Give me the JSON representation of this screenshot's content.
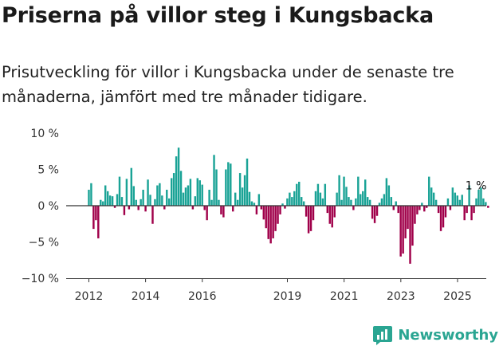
{
  "header": {
    "title": "Priserna på villor steg i Kungsbacka",
    "subtitle": "Prisutveckling för villor i Kungsbacka under de senaste tre månaderna, jämfört med tre månader tidigare."
  },
  "brand": {
    "name": "Newsworthy",
    "color": "#2aa592"
  },
  "colors": {
    "positive": "#1aa396",
    "negative": "#a0004a",
    "zero_line": "#333333",
    "axis": "#333333"
  },
  "chart_data": {
    "type": "bar",
    "x_start": 2012.0,
    "x_step": 0.0833,
    "xlim": [
      2011.2,
      2025.9
    ],
    "ylim": [
      -10,
      10
    ],
    "yticks": [
      10,
      5,
      0,
      -5,
      -10
    ],
    "ytick_labels": [
      "10 %",
      "5 %",
      "0 %",
      "−5 %",
      "−10 %"
    ],
    "xticks": [
      2012,
      2014,
      2016,
      2019,
      2021,
      2023,
      2025
    ],
    "xtick_labels": [
      "2012",
      "2014",
      "2016",
      "2019",
      "2021",
      "2023",
      "2025"
    ],
    "annotation": {
      "text": "1 %",
      "x": 2025.33,
      "value": 1.4
    },
    "values": [
      2.2,
      3.1,
      -3.2,
      -2.0,
      -4.5,
      0.8,
      0.6,
      2.8,
      2.0,
      1.4,
      1.3,
      -0.3,
      1.6,
      4.0,
      1.2,
      -1.3,
      3.7,
      -0.5,
      5.2,
      2.7,
      0.8,
      -0.6,
      0.9,
      2.2,
      -0.8,
      3.6,
      1.5,
      -2.5,
      0.9,
      2.8,
      3.1,
      1.4,
      -0.5,
      2.2,
      1.0,
      3.8,
      4.5,
      6.8,
      8.0,
      4.8,
      1.8,
      2.5,
      2.8,
      3.7,
      -0.5,
      1.3,
      3.8,
      3.5,
      2.9,
      -0.6,
      -2.0,
      2.2,
      0.8,
      7.0,
      5.0,
      0.8,
      -1.2,
      -1.6,
      5.0,
      6.0,
      5.8,
      -0.8,
      1.8,
      0.8,
      4.5,
      2.5,
      4.2,
      6.5,
      1.9,
      0.6,
      0.4,
      -1.2,
      1.6,
      -0.5,
      -1.9,
      -3.1,
      -4.6,
      -5.2,
      -4.5,
      -3.5,
      -2.5,
      -1.2,
      0.3,
      -0.4,
      1.0,
      1.8,
      1.2,
      2.0,
      3.0,
      3.3,
      1.2,
      0.6,
      -1.5,
      -3.8,
      -3.5,
      -2.0,
      2.0,
      3.0,
      1.8,
      1.0,
      3.0,
      -1.0,
      -2.5,
      -3.0,
      -1.6,
      1.8,
      4.2,
      0.8,
      4.0,
      2.6,
      1.2,
      0.8,
      -0.6,
      1.0,
      4.0,
      1.6,
      2.0,
      3.6,
      1.2,
      0.8,
      -1.8,
      -2.4,
      -1.4,
      0.4,
      1.0,
      1.6,
      3.8,
      2.8,
      1.2,
      -0.6,
      0.6,
      -1.0,
      -7.0,
      -6.6,
      -4.5,
      -3.2,
      -8.0,
      -5.5,
      -2.5,
      -1.2,
      -0.6,
      0.4,
      -0.8,
      -0.3,
      4.0,
      2.5,
      1.8,
      0.8,
      -1.0,
      -3.5,
      -3.0,
      -1.6,
      1.0,
      -0.6,
      2.5,
      1.8,
      1.4,
      0.8,
      1.5,
      -2.0,
      -1.0,
      2.8,
      -2.0,
      -1.0,
      1.0,
      2.2,
      2.5,
      1.0,
      0.5,
      -0.3
    ]
  }
}
